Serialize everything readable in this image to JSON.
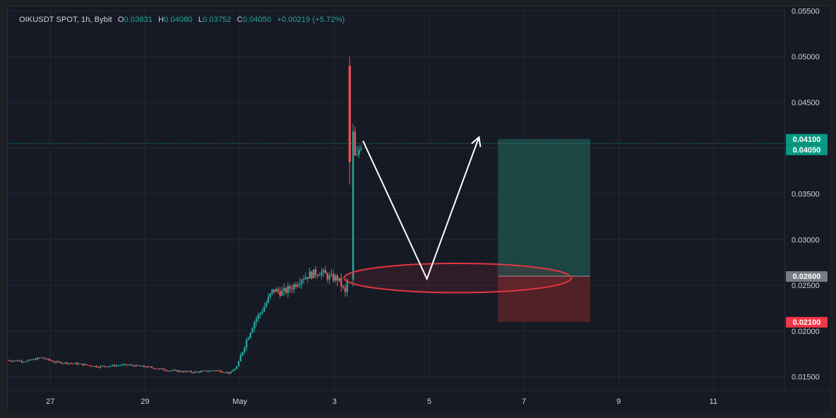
{
  "legend": {
    "symbol": "OIKUSDT SPOT, 1h, Bybit",
    "open_label": "O",
    "open": "0.03831",
    "high_label": "H",
    "high": "0.04080",
    "low_label": "L",
    "low": "0.03752",
    "close_label": "C",
    "close": "0.04050",
    "change": "+0.00219 (+5.72%)"
  },
  "colors": {
    "background": "#161a25",
    "up": "#26a69a",
    "down": "#ef5350",
    "grid": "#232733",
    "axis_text": "#d1d4dc",
    "target_zone": "#1d4e4a",
    "stop_zone": "#5a2328",
    "ellipse": "#e0363f",
    "arrow": "#ffffff"
  },
  "price_tags": [
    {
      "label": "0.04100",
      "value": 0.041,
      "color": "#089981"
    },
    {
      "label": "0.04050",
      "value": 0.0405,
      "color": "#089981"
    },
    {
      "label": "0.02600",
      "value": 0.026,
      "color": "#787b86"
    },
    {
      "label": "0.02100",
      "value": 0.021,
      "color": "#f23645"
    }
  ],
  "chart_data": {
    "type": "candlestick",
    "title": "OIKUSDT SPOT, 1h, Bybit",
    "y_ticks": [
      "0.01500",
      "0.02000",
      "0.02500",
      "0.03000",
      "0.03500",
      "0.04000",
      "0.04500",
      "0.05000",
      "0.05500"
    ],
    "ylim": [
      0.0135,
      0.0555
    ],
    "x_ticks": [
      {
        "label": "27",
        "day": 27
      },
      {
        "label": "29",
        "day": 29
      },
      {
        "label": "May",
        "day": 31
      },
      {
        "label": "3",
        "day": 33
      },
      {
        "label": "5",
        "day": 35
      },
      {
        "label": "7",
        "day": 37
      },
      {
        "label": "9",
        "day": 39
      },
      {
        "label": "11",
        "day": 41
      }
    ],
    "xlim_days": [
      26.1,
      42.5
    ],
    "last_close": 0.0405,
    "price_path": [
      [
        26.1,
        0.0168
      ],
      [
        26.5,
        0.0167
      ],
      [
        26.8,
        0.0171
      ],
      [
        27.1,
        0.0166
      ],
      [
        27.6,
        0.0164
      ],
      [
        28.0,
        0.0161
      ],
      [
        28.6,
        0.0163
      ],
      [
        29.0,
        0.0161
      ],
      [
        29.5,
        0.0157
      ],
      [
        30.0,
        0.0155
      ],
      [
        30.5,
        0.0157
      ],
      [
        30.8,
        0.0154
      ],
      [
        30.95,
        0.0162
      ],
      [
        31.1,
        0.0185
      ],
      [
        31.3,
        0.021
      ],
      [
        31.5,
        0.0225
      ],
      [
        31.7,
        0.0245
      ],
      [
        31.9,
        0.0242
      ],
      [
        32.1,
        0.0248
      ],
      [
        32.3,
        0.0258
      ],
      [
        32.5,
        0.0262
      ],
      [
        32.7,
        0.0265
      ],
      [
        32.9,
        0.0258
      ],
      [
        33.05,
        0.0258
      ],
      [
        33.15,
        0.025
      ],
      [
        33.22,
        0.024
      ],
      [
        33.26,
        0.0248
      ],
      [
        33.28,
        0.027
      ],
      [
        33.3,
        0.046
      ],
      [
        33.33,
        0.0495
      ],
      [
        33.36,
        0.0488
      ],
      [
        33.4,
        0.0395
      ],
      [
        33.46,
        0.0385
      ],
      [
        33.52,
        0.04
      ],
      [
        33.56,
        0.0405
      ]
    ],
    "spike": {
      "day": 33.32,
      "high": 0.05,
      "open": 0.049,
      "close": 0.0385,
      "low": 0.036
    },
    "position": {
      "day_start": 36.45,
      "day_end": 38.4,
      "target": 0.041,
      "entry": 0.026,
      "stop": 0.021
    },
    "arrow_path": [
      [
        33.6,
        0.0408
      ],
      [
        34.95,
        0.0257
      ],
      [
        36.05,
        0.0412
      ]
    ],
    "ellipse": {
      "day_start": 33.2,
      "day_end": 38.0,
      "center": 0.0258,
      "half_height": 0.0016
    }
  }
}
